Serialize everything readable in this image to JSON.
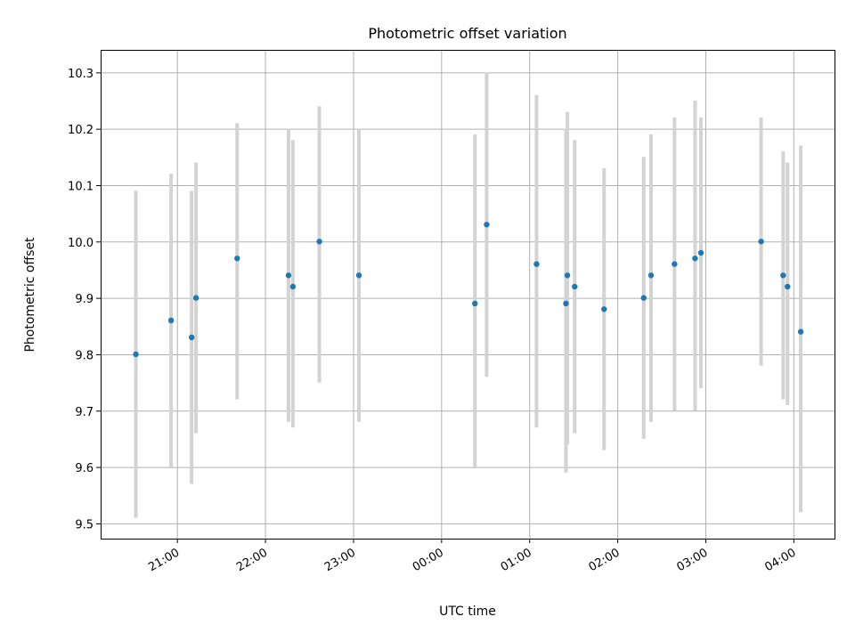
{
  "chart_data": {
    "type": "scatter",
    "title": "Photometric offset variation",
    "xlabel": "UTC time",
    "ylabel": "Photometric offset",
    "grid": true,
    "x_axis": {
      "kind": "time",
      "range": [
        "20:08",
        "04:28"
      ],
      "ticks": [
        "21:00",
        "22:00",
        "23:00",
        "00:00",
        "01:00",
        "02:00",
        "03:00",
        "04:00"
      ],
      "tick_label_rotation": 30
    },
    "y_axis": {
      "range": [
        9.473,
        10.34
      ],
      "ticks": [
        "9.5",
        "9.6",
        "9.7",
        "9.8",
        "9.9",
        "10.0",
        "10.1",
        "10.2",
        "10.3"
      ]
    },
    "series": [
      {
        "color": "#1f77b4",
        "error_bar_color": "#d3d3d3",
        "points": [
          {
            "x": "20:32",
            "y": 9.8,
            "y_low": 9.51,
            "y_high": 10.09
          },
          {
            "x": "20:56",
            "y": 9.86,
            "y_low": 9.6,
            "y_high": 10.12
          },
          {
            "x": "21:10",
            "y": 9.83,
            "y_low": 9.57,
            "y_high": 10.09
          },
          {
            "x": "21:13",
            "y": 9.9,
            "y_low": 9.66,
            "y_high": 10.14
          },
          {
            "x": "21:41",
            "y": 9.97,
            "y_low": 9.72,
            "y_high": 10.21
          },
          {
            "x": "22:16",
            "y": 9.94,
            "y_low": 9.68,
            "y_high": 10.2
          },
          {
            "x": "22:19",
            "y": 9.92,
            "y_low": 9.67,
            "y_high": 10.18
          },
          {
            "x": "22:37",
            "y": 10.0,
            "y_low": 9.75,
            "y_high": 10.24
          },
          {
            "x": "23:04",
            "y": 9.94,
            "y_low": 9.68,
            "y_high": 10.2
          },
          {
            "x": "00:23",
            "y": 9.89,
            "y_low": 9.6,
            "y_high": 10.19
          },
          {
            "x": "00:31",
            "y": 10.03,
            "y_low": 9.76,
            "y_high": 10.3
          },
          {
            "x": "01:05",
            "y": 9.96,
            "y_low": 9.67,
            "y_high": 10.26
          },
          {
            "x": "01:25",
            "y": 9.89,
            "y_low": 9.59,
            "y_high": 10.2
          },
          {
            "x": "01:26",
            "y": 9.94,
            "y_low": 9.64,
            "y_high": 10.23
          },
          {
            "x": "01:31",
            "y": 9.92,
            "y_low": 9.66,
            "y_high": 10.18
          },
          {
            "x": "01:51",
            "y": 9.88,
            "y_low": 9.63,
            "y_high": 10.13
          },
          {
            "x": "02:18",
            "y": 9.9,
            "y_low": 9.65,
            "y_high": 10.15
          },
          {
            "x": "02:23",
            "y": 9.94,
            "y_low": 9.68,
            "y_high": 10.19
          },
          {
            "x": "02:39",
            "y": 9.96,
            "y_low": 9.7,
            "y_high": 10.22
          },
          {
            "x": "02:53",
            "y": 9.97,
            "y_low": 9.7,
            "y_high": 10.25
          },
          {
            "x": "02:57",
            "y": 9.98,
            "y_low": 9.74,
            "y_high": 10.22
          },
          {
            "x": "03:38",
            "y": 10.0,
            "y_low": 9.78,
            "y_high": 10.22
          },
          {
            "x": "03:53",
            "y": 9.94,
            "y_low": 9.72,
            "y_high": 10.16
          },
          {
            "x": "03:56",
            "y": 9.92,
            "y_low": 9.71,
            "y_high": 10.14
          },
          {
            "x": "04:05",
            "y": 9.84,
            "y_low": 9.52,
            "y_high": 10.17
          }
        ]
      }
    ]
  }
}
